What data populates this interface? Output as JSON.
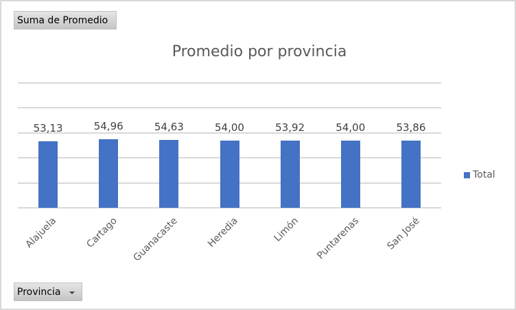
{
  "pivot": {
    "values_field_label": "Suma de Promedio",
    "axis_field_label": "Provincia"
  },
  "colors": {
    "bar": "#4472c4",
    "gridline": "#d9d9d9",
    "title": "#595959"
  },
  "chart_data": {
    "type": "bar",
    "title": "Promedio por provincia",
    "xlabel": "",
    "ylabel": "",
    "categories": [
      "Alajuela",
      "Cartago",
      "Guanacaste",
      "Heredia",
      "Limón",
      "Puntarenas",
      "San José"
    ],
    "series": [
      {
        "name": "Total",
        "values": [
          53.13,
          54.96,
          54.63,
          54.0,
          53.92,
          54.0,
          53.86
        ]
      }
    ],
    "data_labels": [
      "53,13",
      "54,96",
      "54,63",
      "54,00",
      "53,92",
      "54,00",
      "53,86"
    ],
    "ylim": [
      0,
      100
    ],
    "ytick_step": 20,
    "y_axis_labels_visible": false,
    "grid": true,
    "legend_position": "right",
    "legend": [
      "Total"
    ]
  }
}
